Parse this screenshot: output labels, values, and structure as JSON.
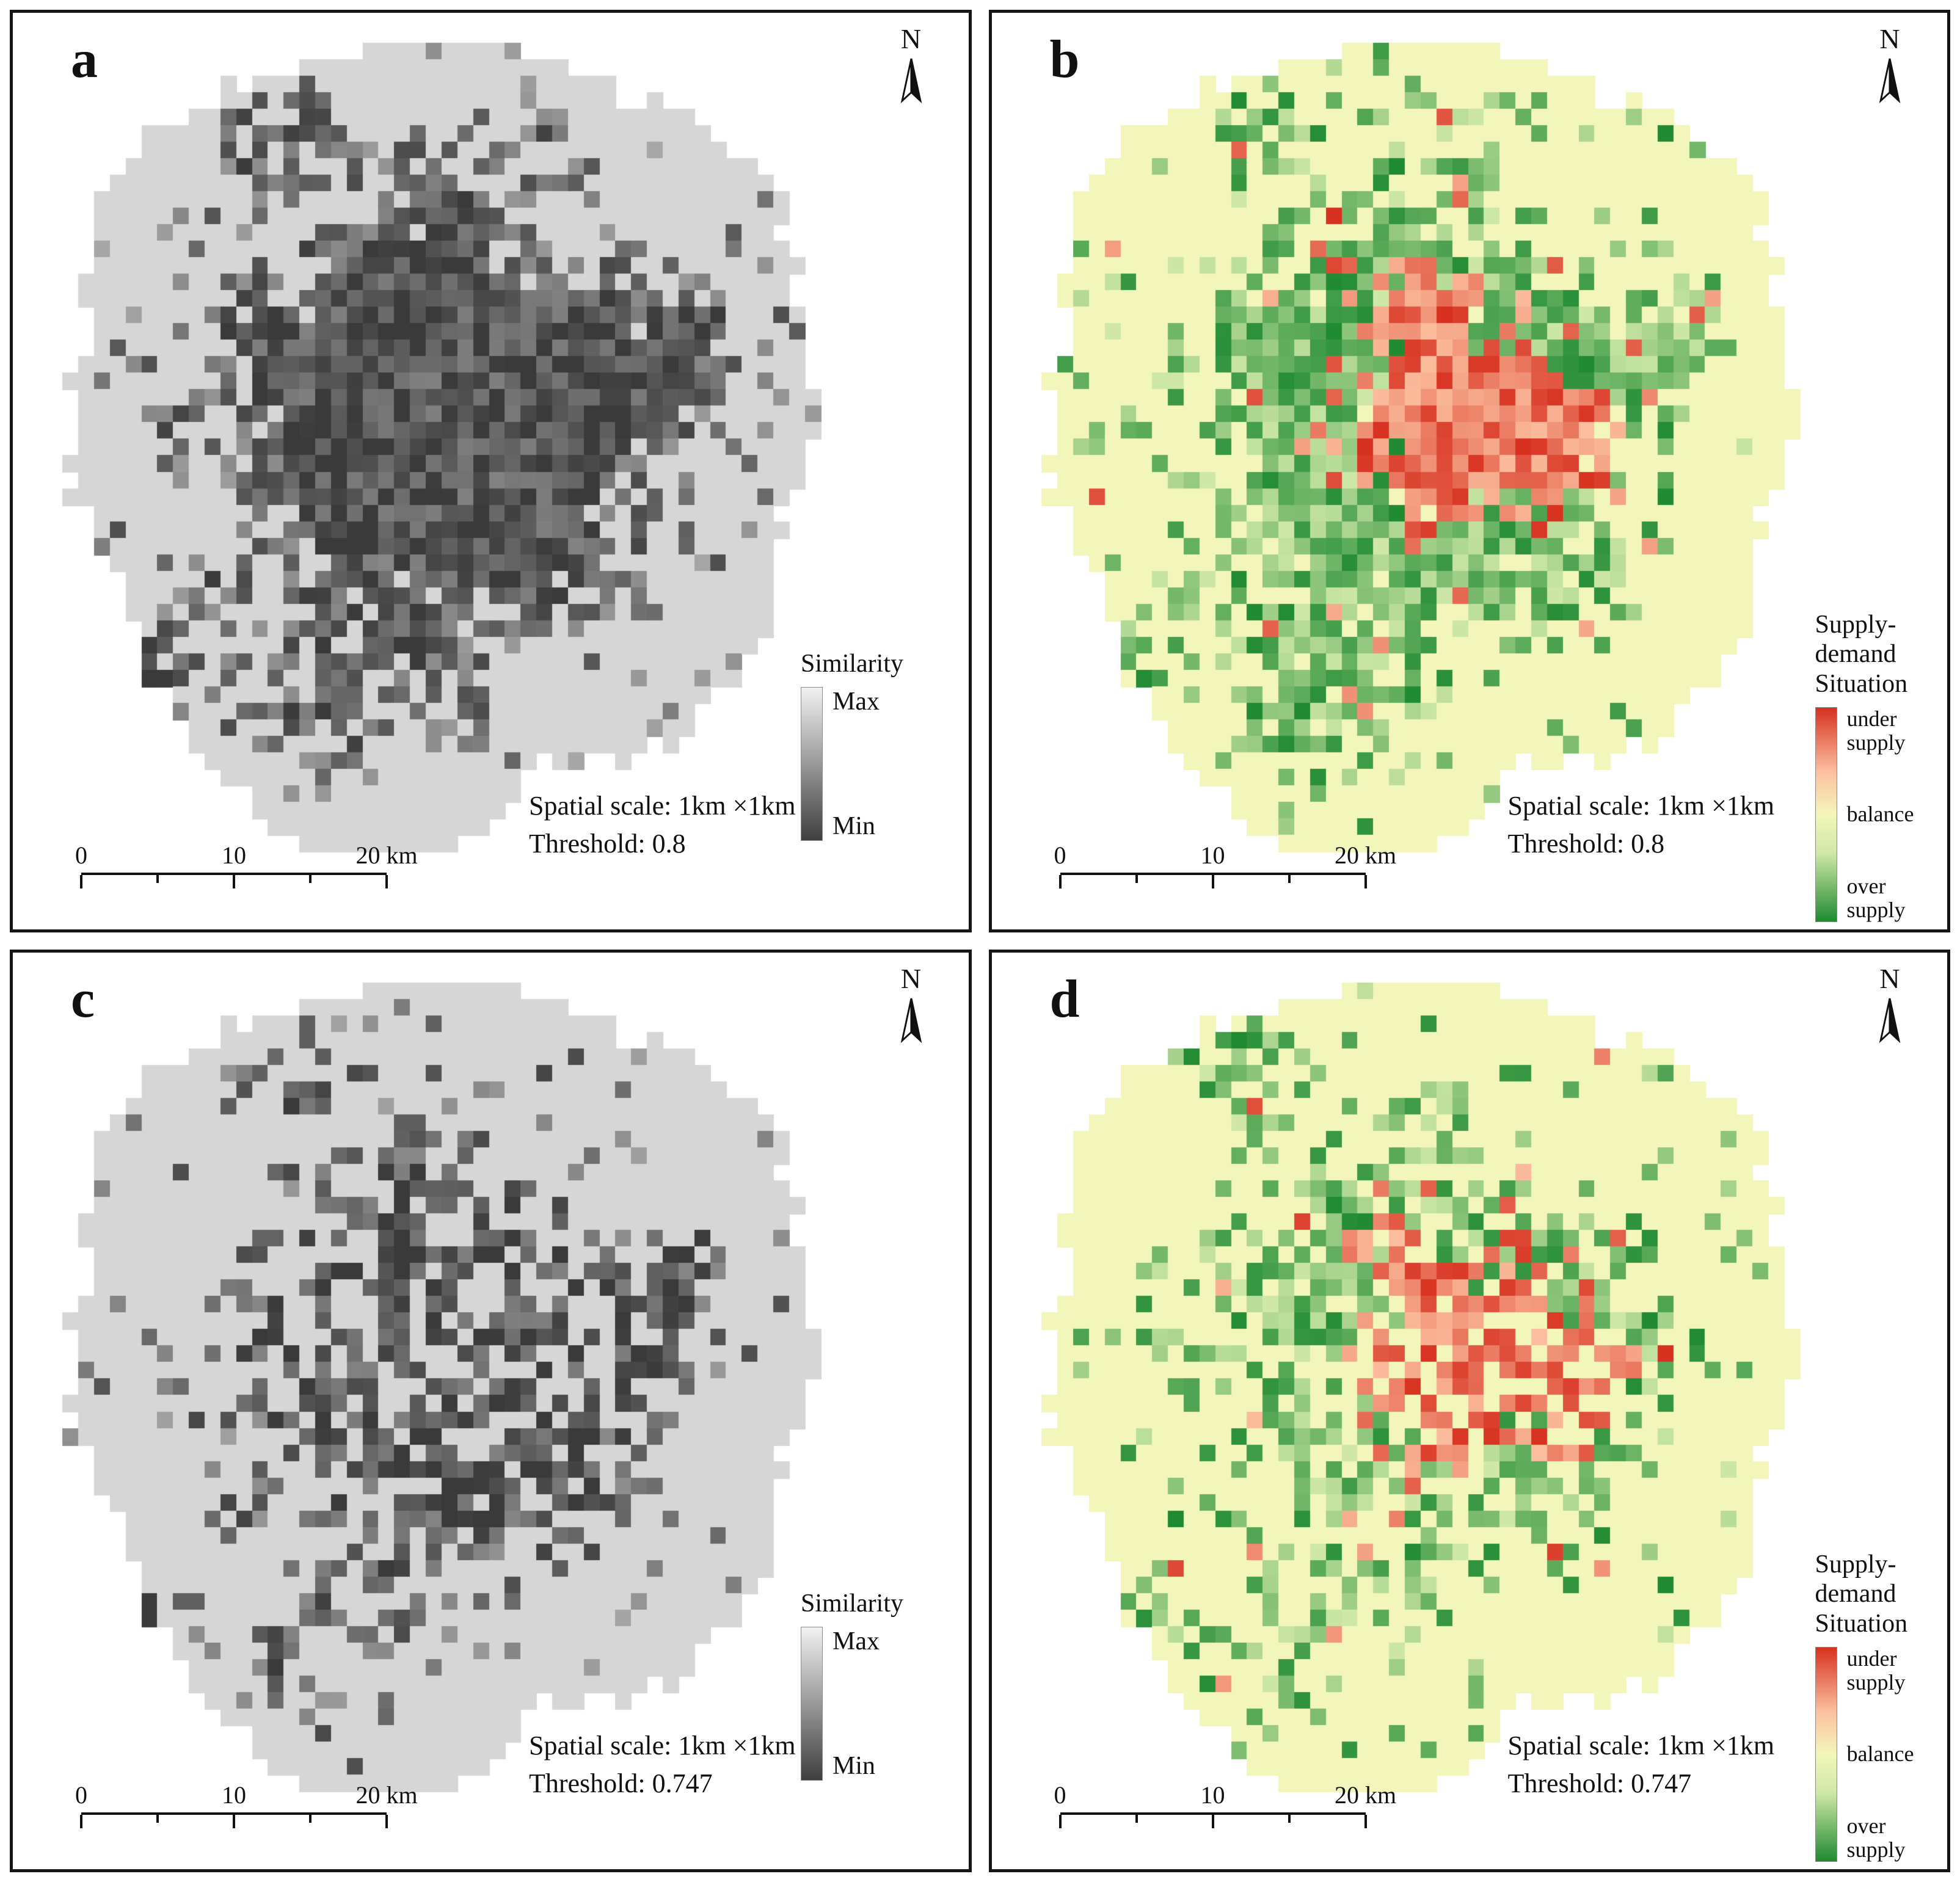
{
  "colors": {
    "panel_border": "#151515",
    "gray_base": "#d6d6d6",
    "gray_cell_dark": "#3a3a3a",
    "gray_cell_light": "#a8a8a8",
    "legend_gray_top": "#f2f2f2",
    "legend_gray_bottom": "#3f3f3f",
    "supply_base": "#f3f6bb",
    "red_dark": "#d7301f",
    "red_light": "#fcc0a0",
    "green_dark": "#1f8a32",
    "green_light": "#cfe8a8"
  },
  "map_grid": {
    "cols": 58,
    "rows": 54
  },
  "map_shape": [
    [
      0.45,
      0.44,
      0.38,
      0.36
    ],
    [
      0.3,
      0.28,
      0.24,
      0.22
    ],
    [
      0.62,
      0.3,
      0.22,
      0.22
    ],
    [
      0.6,
      0.58,
      0.22,
      0.24
    ],
    [
      0.32,
      0.62,
      0.22,
      0.24
    ],
    [
      0.45,
      0.12,
      0.22,
      0.1
    ],
    [
      0.2,
      0.45,
      0.16,
      0.22
    ],
    [
      0.38,
      0.83,
      0.16,
      0.1
    ],
    [
      0.7,
      0.42,
      0.16,
      0.18
    ]
  ],
  "map_clusters": [
    [
      0.42,
      0.42,
      0.15,
      1.0
    ],
    [
      0.52,
      0.46,
      0.12,
      0.95
    ],
    [
      0.34,
      0.46,
      0.09,
      0.8
    ],
    [
      0.58,
      0.38,
      0.09,
      0.8
    ],
    [
      0.46,
      0.3,
      0.08,
      0.7
    ],
    [
      0.28,
      0.13,
      0.06,
      0.9
    ],
    [
      0.47,
      0.18,
      0.06,
      0.6
    ],
    [
      0.36,
      0.27,
      0.06,
      0.6
    ],
    [
      0.68,
      0.4,
      0.07,
      0.75
    ],
    [
      0.74,
      0.33,
      0.05,
      0.6
    ],
    [
      0.6,
      0.6,
      0.08,
      0.7
    ],
    [
      0.38,
      0.7,
      0.09,
      0.8
    ],
    [
      0.29,
      0.78,
      0.06,
      0.6
    ],
    [
      0.13,
      0.72,
      0.05,
      0.65
    ],
    [
      0.2,
      0.62,
      0.05,
      0.5
    ],
    [
      0.56,
      0.11,
      0.04,
      0.5
    ],
    [
      0.33,
      0.57,
      0.06,
      0.6
    ],
    [
      0.48,
      0.6,
      0.06,
      0.6
    ],
    [
      0.25,
      0.35,
      0.06,
      0.55
    ],
    [
      0.15,
      0.45,
      0.04,
      0.45
    ]
  ],
  "red_clusters": [
    [
      0.5,
      0.42,
      0.08,
      1.0
    ],
    [
      0.58,
      0.46,
      0.06,
      0.9
    ],
    [
      0.44,
      0.32,
      0.05,
      0.7
    ],
    [
      0.41,
      0.45,
      0.04,
      0.6
    ],
    [
      0.64,
      0.47,
      0.05,
      0.8
    ],
    [
      0.47,
      0.52,
      0.04,
      0.5
    ]
  ],
  "panels": [
    {
      "id": "a",
      "label": "a",
      "north_label": "N",
      "type": "similarity",
      "legend": {
        "title": "Similarity",
        "max_label": "Max",
        "min_label": "Min"
      },
      "annotation": {
        "line1": "Spatial scale: 1km ×1km",
        "line2": "Threshold: 0.8"
      },
      "scalebar": {
        "t0": "0",
        "t1": "10",
        "t2": "20 km"
      },
      "map": {
        "mode": "gray",
        "seed": 3,
        "density": 1.0,
        "scatter": 0.05
      }
    },
    {
      "id": "b",
      "label": "b",
      "north_label": "N",
      "type": "supply-demand",
      "legend": {
        "title": "Supply-demand\nSituation",
        "top_label": "under\nsupply",
        "mid_label": "balance",
        "bottom_label": "over\nsupply"
      },
      "annotation": {
        "line1": "Spatial scale: 1km ×1km",
        "line2": "Threshold: 0.8"
      },
      "scalebar": {
        "t0": "0",
        "t1": "10",
        "t2": "20 km"
      },
      "map": {
        "mode": "supply",
        "seed": 11,
        "density": 0.9,
        "scatter": 0.06
      }
    },
    {
      "id": "c",
      "label": "c",
      "north_label": "N",
      "type": "similarity",
      "legend": {
        "title": "Similarity",
        "max_label": "Max",
        "min_label": "Min"
      },
      "annotation": {
        "line1": "Spatial scale: 1km ×1km",
        "line2": "Threshold: 0.747"
      },
      "scalebar": {
        "t0": "0",
        "t1": "10",
        "t2": "20 km"
      },
      "map": {
        "mode": "gray",
        "seed": 7,
        "density": 0.55,
        "scatter": 0.035
      }
    },
    {
      "id": "d",
      "label": "d",
      "north_label": "N",
      "type": "supply-demand",
      "legend": {
        "title": "Supply-demand\nSituation",
        "top_label": "under\nsupply",
        "mid_label": "balance",
        "bottom_label": "over\nsupply"
      },
      "annotation": {
        "line1": "Spatial scale: 1km ×1km",
        "line2": "Threshold: 0.747"
      },
      "scalebar": {
        "t0": "0",
        "t1": "10",
        "t2": "20 km"
      },
      "map": {
        "mode": "supply",
        "seed": 15,
        "density": 0.6,
        "scatter": 0.045
      }
    }
  ]
}
